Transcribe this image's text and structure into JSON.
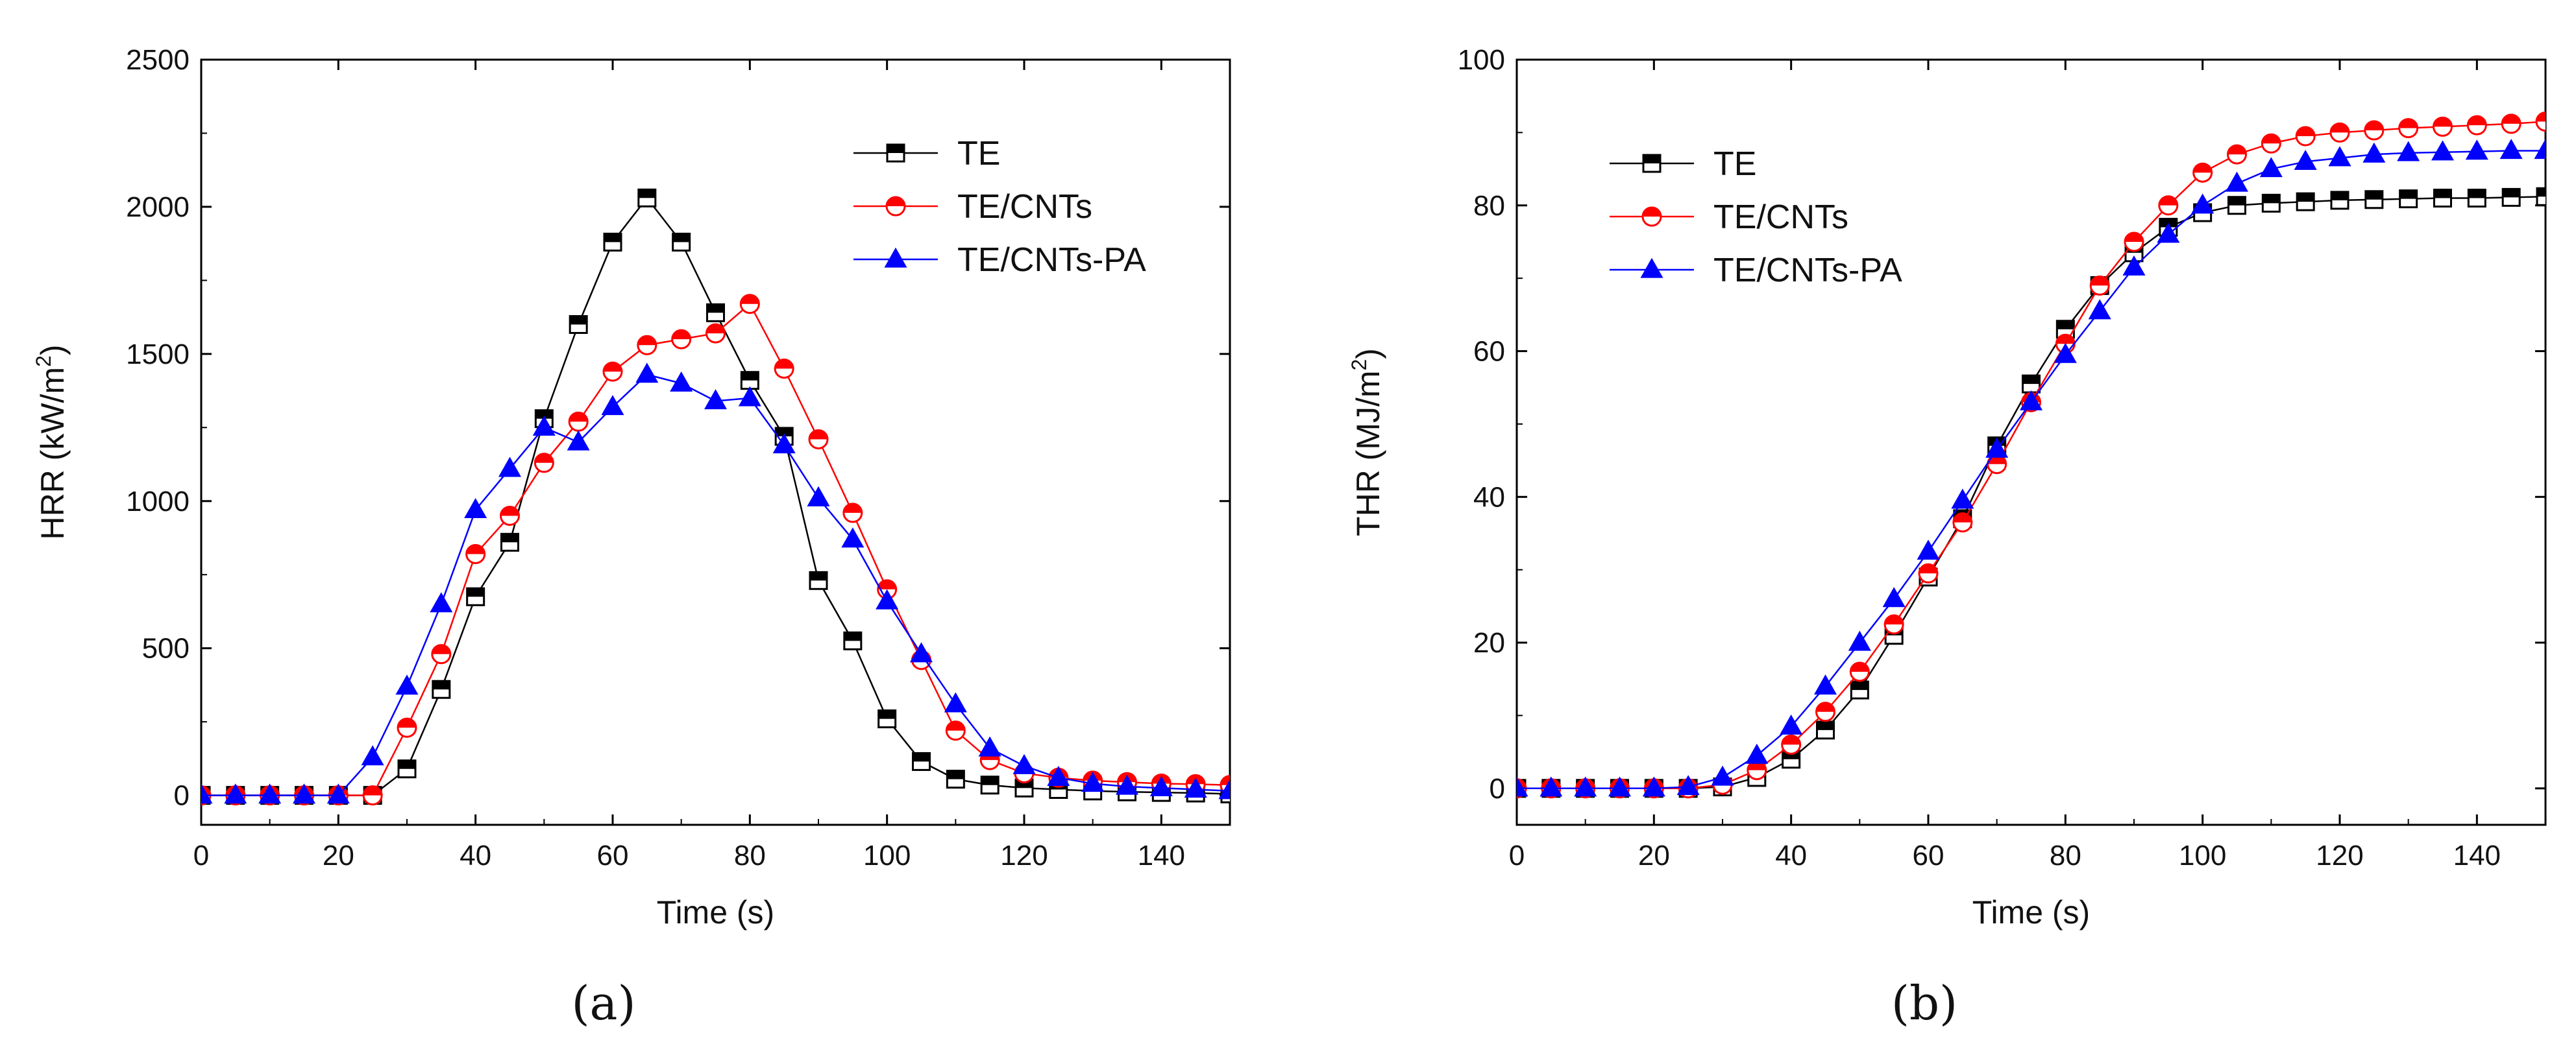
{
  "panel_labels": [
    "(a)",
    "(b)"
  ],
  "chart_data": [
    {
      "type": "line",
      "panel": "(a)",
      "title": "",
      "xlabel": "Time (s)",
      "ylabel": "HRR (kW/m",
      "ylabel_sup": "2",
      "ylabel_end": ")",
      "xlim": [
        0,
        150
      ],
      "ylim": [
        -100,
        2500
      ],
      "xticks": [
        0,
        20,
        40,
        60,
        80,
        100,
        120,
        140
      ],
      "yticks": [
        0,
        500,
        1000,
        1500,
        2000,
        2500
      ],
      "xtick_labels": [
        "0",
        "20",
        "40",
        "60",
        "80",
        "100",
        "120",
        "140"
      ],
      "ytick_labels": [
        "0",
        "500",
        "1000",
        "1500",
        "2000",
        "2500"
      ],
      "legend_position": "top-right",
      "grid": false,
      "x": [
        0,
        5,
        10,
        15,
        20,
        25,
        30,
        35,
        40,
        45,
        50,
        55,
        60,
        65,
        70,
        75,
        80,
        85,
        90,
        95,
        100,
        105,
        110,
        115,
        120,
        125,
        130,
        135,
        140,
        145,
        150
      ],
      "series": [
        {
          "name": "TE",
          "color": "#000000",
          "marker": "square",
          "values": [
            0,
            0,
            0,
            0,
            0,
            0,
            90,
            360,
            675,
            860,
            1280,
            1600,
            1880,
            2030,
            1880,
            1640,
            1410,
            1220,
            730,
            525,
            260,
            115,
            55,
            35,
            25,
            20,
            15,
            12,
            10,
            8,
            5
          ]
        },
        {
          "name": "TE/CNTs",
          "color": "#ff0000",
          "marker": "circle",
          "values": [
            0,
            0,
            0,
            0,
            0,
            0,
            230,
            480,
            820,
            950,
            1130,
            1270,
            1440,
            1530,
            1550,
            1570,
            1670,
            1450,
            1210,
            960,
            700,
            460,
            220,
            120,
            75,
            60,
            50,
            45,
            40,
            38,
            35
          ]
        },
        {
          "name": "TE/CNTs-PA",
          "color": "#0000ff",
          "marker": "triangle",
          "values": [
            0,
            0,
            0,
            0,
            0,
            130,
            370,
            650,
            970,
            1110,
            1250,
            1200,
            1320,
            1430,
            1400,
            1340,
            1350,
            1190,
            1010,
            870,
            660,
            480,
            310,
            160,
            100,
            60,
            40,
            30,
            25,
            20,
            15
          ]
        }
      ]
    },
    {
      "type": "line",
      "panel": "(b)",
      "title": "",
      "xlabel": "Time (s)",
      "ylabel": "THR (MJ/m",
      "ylabel_sup": "2",
      "ylabel_end": ")",
      "xlim": [
        0,
        150
      ],
      "ylim": [
        -5,
        100
      ],
      "xticks": [
        0,
        20,
        40,
        60,
        80,
        100,
        120,
        140
      ],
      "yticks": [
        0,
        20,
        40,
        60,
        80,
        100
      ],
      "xtick_labels": [
        "0",
        "20",
        "40",
        "60",
        "80",
        "100",
        "120",
        "140"
      ],
      "ytick_labels": [
        "0",
        "20",
        "40",
        "60",
        "80",
        "100"
      ],
      "legend_position": "top-left",
      "grid": false,
      "x": [
        0,
        5,
        10,
        15,
        20,
        25,
        30,
        35,
        40,
        45,
        50,
        55,
        60,
        65,
        70,
        75,
        80,
        85,
        90,
        95,
        100,
        105,
        110,
        115,
        120,
        125,
        130,
        135,
        140,
        145,
        150
      ],
      "series": [
        {
          "name": "TE",
          "color": "#000000",
          "marker": "square",
          "values": [
            0,
            0,
            0,
            0,
            0,
            0,
            0.2,
            1.5,
            4,
            8,
            13.5,
            21,
            29,
            37,
            47,
            55.5,
            63,
            69,
            73.5,
            77,
            79,
            80,
            80.3,
            80.5,
            80.7,
            80.8,
            80.9,
            81,
            81,
            81.1,
            81.2
          ]
        },
        {
          "name": "TE/CNTs",
          "color": "#ff0000",
          "marker": "circle",
          "values": [
            0,
            0,
            0,
            0,
            0,
            0,
            0.5,
            2.5,
            6,
            10.5,
            16,
            22.5,
            29.5,
            36.5,
            44.5,
            53,
            61,
            69,
            75,
            80,
            84.5,
            87,
            88.5,
            89.5,
            90,
            90.3,
            90.6,
            90.8,
            91,
            91.2,
            91.5
          ]
        },
        {
          "name": "TE/CNTs-PA",
          "color": "#0000ff",
          "marker": "triangle",
          "values": [
            0,
            0,
            0,
            0,
            0,
            0.2,
            1.5,
            4.5,
            8.5,
            14,
            20,
            26,
            32.5,
            39.5,
            46.5,
            53,
            59.5,
            65.5,
            71.5,
            76,
            80,
            83,
            85,
            86,
            86.5,
            87,
            87.2,
            87.3,
            87.4,
            87.5,
            87.5
          ]
        }
      ]
    }
  ]
}
